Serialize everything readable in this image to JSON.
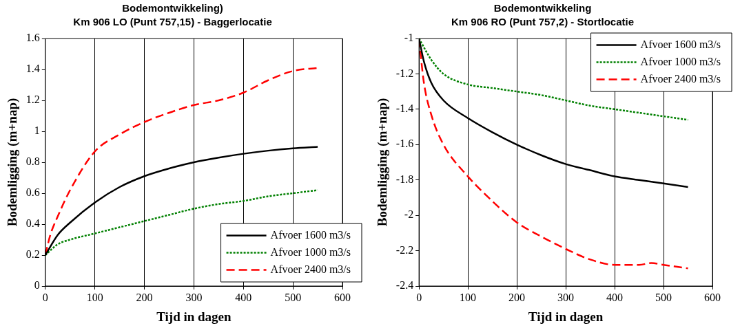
{
  "chart_data": [
    {
      "type": "line",
      "title": "Bodemontwikkeling)",
      "subtitle": "Km 906 LO (Punt 757,15) - Baggerlocatie",
      "xlabel": "Tijd in dagen",
      "ylabel": "Bodemligging (m+nap)",
      "xlim": [
        0,
        600
      ],
      "xticks": [
        0,
        100,
        200,
        300,
        400,
        500,
        600
      ],
      "ylim": [
        0,
        1.6
      ],
      "yticks": [
        0,
        0.2,
        0.4,
        0.6,
        0.8,
        1,
        1.2,
        1.4,
        1.6
      ],
      "grid": "x",
      "legend": "bottom right",
      "marker": "none",
      "series": [
        {
          "name": "Afvoer 1600 m3/s",
          "color": "#000000",
          "line_style": "solid",
          "x": [
            0,
            25,
            50,
            100,
            150,
            200,
            250,
            300,
            350,
            400,
            450,
            500,
            550
          ],
          "values": [
            0.2,
            0.33,
            0.41,
            0.54,
            0.64,
            0.71,
            0.76,
            0.8,
            0.83,
            0.855,
            0.875,
            0.89,
            0.9
          ]
        },
        {
          "name": "Afvoer 1000 m3/s",
          "color": "#008000",
          "line_style": "dotted",
          "x": [
            0,
            25,
            50,
            100,
            150,
            200,
            250,
            300,
            350,
            400,
            450,
            500,
            550
          ],
          "values": [
            0.2,
            0.27,
            0.3,
            0.34,
            0.38,
            0.42,
            0.46,
            0.5,
            0.53,
            0.55,
            0.58,
            0.6,
            0.62
          ]
        },
        {
          "name": "Afvoer 2400 m3/s",
          "color": "#ff0000",
          "line_style": "dashed",
          "x": [
            0,
            10,
            25,
            50,
            100,
            150,
            200,
            250,
            300,
            350,
            400,
            450,
            500,
            550
          ],
          "values": [
            0.2,
            0.33,
            0.45,
            0.62,
            0.87,
            0.98,
            1.06,
            1.12,
            1.17,
            1.2,
            1.25,
            1.33,
            1.39,
            1.41
          ]
        }
      ]
    },
    {
      "type": "line",
      "title": "Bodemontwikkeling",
      "subtitle": "Km 906 RO (Punt 757,2) - Stortlocatie",
      "xlabel": "Tijd in dagen",
      "ylabel": "Bodemligging (m+nap)",
      "xlim": [
        0,
        600
      ],
      "xticks": [
        0,
        100,
        200,
        300,
        400,
        500,
        600
      ],
      "ylim": [
        -2.4,
        -1
      ],
      "yticks": [
        -2.4,
        -2.2,
        -2,
        -1.8,
        -1.6,
        -1.4,
        -1.2,
        -1
      ],
      "grid": "x",
      "legend": "top right",
      "marker": "none",
      "series": [
        {
          "name": "Afvoer 1600 m3/s",
          "color": "#000000",
          "line_style": "solid",
          "x": [
            0,
            10,
            25,
            50,
            100,
            150,
            200,
            250,
            300,
            350,
            400,
            450,
            500,
            550
          ],
          "values": [
            -1,
            -1.13,
            -1.25,
            -1.35,
            -1.45,
            -1.53,
            -1.6,
            -1.66,
            -1.71,
            -1.745,
            -1.78,
            -1.8,
            -1.82,
            -1.84
          ]
        },
        {
          "name": "Afvoer 1000 m3/s",
          "color": "#008000",
          "line_style": "dotted",
          "x": [
            0,
            25,
            50,
            100,
            150,
            200,
            250,
            300,
            350,
            400,
            450,
            500,
            550
          ],
          "values": [
            -1,
            -1.12,
            -1.2,
            -1.26,
            -1.28,
            -1.3,
            -1.32,
            -1.35,
            -1.38,
            -1.4,
            -1.42,
            -1.44,
            -1.46
          ]
        },
        {
          "name": "Afvoer 2400 m3/s",
          "color": "#ff0000",
          "line_style": "dashed",
          "x": [
            0,
            10,
            25,
            50,
            100,
            150,
            200,
            250,
            300,
            350,
            400,
            450,
            475,
            500,
            550
          ],
          "values": [
            -1,
            -1.25,
            -1.43,
            -1.6,
            -1.78,
            -1.92,
            -2.04,
            -2.12,
            -2.19,
            -2.25,
            -2.28,
            -2.28,
            -2.27,
            -2.28,
            -2.3
          ]
        }
      ]
    }
  ]
}
